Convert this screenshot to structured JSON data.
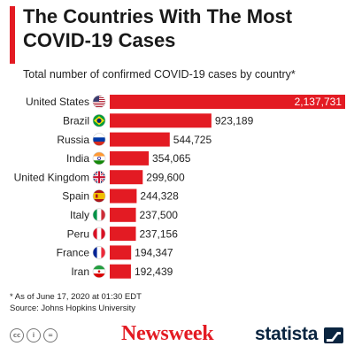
{
  "header": {
    "title": "The Countries With The Most COVID-19 Cases",
    "subtitle": "Total number of confirmed COVID-19 cases by country*"
  },
  "chart_data": {
    "type": "bar",
    "orientation": "horizontal",
    "categories": [
      "United States",
      "Brazil",
      "Russia",
      "India",
      "United Kingdom",
      "Spain",
      "Italy",
      "Peru",
      "France",
      "Iran"
    ],
    "values": [
      2137731,
      923189,
      544725,
      354065,
      299600,
      244328,
      237500,
      237156,
      194347,
      192439
    ],
    "value_labels": [
      "2,137,731",
      "923,189",
      "544,725",
      "354,065",
      "299,600",
      "244,328",
      "237,500",
      "237,156",
      "194,347",
      "192,439"
    ],
    "flags": [
      "us-flag-icon",
      "brazil-flag-icon",
      "russia-flag-icon",
      "india-flag-icon",
      "uk-flag-icon",
      "spain-flag-icon",
      "italy-flag-icon",
      "peru-flag-icon",
      "france-flag-icon",
      "iran-flag-icon"
    ],
    "bar_color": "#e31b23",
    "grid": false,
    "legend": "none"
  },
  "footnote": {
    "line1": "* As of June 17, 2020 at 01:30 EDT",
    "line2": "Source: Johns Hopkins University"
  },
  "branding": {
    "newsweek": "Newsweek",
    "statista": "statista",
    "cc": [
      "cc",
      "i",
      "="
    ]
  },
  "colors": {
    "accent": "#e31b23",
    "statista_navy": "#0a2540"
  }
}
